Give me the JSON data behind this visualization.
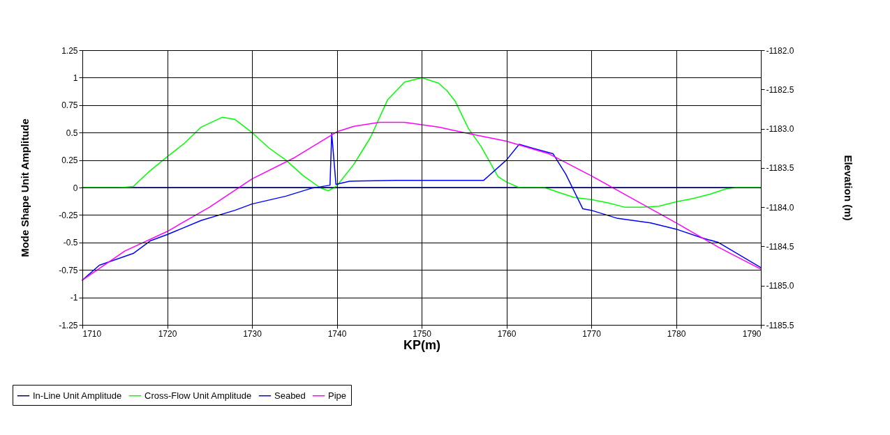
{
  "chart_data": {
    "type": "line",
    "xlabel": "KP(m)",
    "ylabel": "Mode Shape Unit Amplitude",
    "y2label": "Elevation (m)",
    "xlim": [
      1710,
      1790
    ],
    "xticks": [
      1710,
      1720,
      1730,
      1740,
      1750,
      1760,
      1770,
      1780,
      1790
    ],
    "ylim": [
      -1.25,
      1.25
    ],
    "yticks": [
      -1.25,
      -1,
      -0.75,
      -0.5,
      -0.25,
      0,
      0.25,
      0.5,
      0.75,
      1,
      1.25
    ],
    "y2lim": [
      -1185.5,
      -1182
    ],
    "y2ticks": [
      {
        "value": -1185.5,
        "label": "-1185.5"
      },
      {
        "value": -1185,
        "label": "-1185.0"
      },
      {
        "value": -1184.5,
        "label": "-1184.5"
      },
      {
        "value": -1184,
        "label": "-1184.0"
      },
      {
        "value": -1183.5,
        "label": "-1183.5"
      },
      {
        "value": -1183,
        "label": "-1183.0"
      },
      {
        "value": -1182.5,
        "label": "-1182.5"
      },
      {
        "value": -1182,
        "label": "-1182.0"
      }
    ],
    "grid": true,
    "legend": "bottom",
    "series": [
      {
        "name": "In-Line Unit Amplitude",
        "color": "#000080",
        "x": [
          1710,
          1790
        ],
        "values": [
          0,
          0
        ]
      },
      {
        "name": "Cross-Flow Unit Amplitude",
        "color": "#00ff00",
        "x": [
          1710,
          1714.5,
          1716,
          1717.8,
          1720,
          1722,
          1724,
          1726.5,
          1728,
          1730,
          1732,
          1734,
          1736,
          1738,
          1739,
          1740,
          1742,
          1744,
          1746,
          1748,
          1750,
          1752,
          1753,
          1754,
          1755.5,
          1757,
          1759,
          1760,
          1761.5,
          1764.5,
          1766,
          1768,
          1770,
          1772,
          1774,
          1776,
          1778,
          1780,
          1782,
          1784,
          1786,
          1787,
          1790
        ],
        "values": [
          0,
          0,
          0.01,
          0.14,
          0.28,
          0.4,
          0.55,
          0.64,
          0.62,
          0.5,
          0.36,
          0.25,
          0.11,
          0,
          -0.03,
          0.015,
          0.21,
          0.46,
          0.8,
          0.96,
          1,
          0.95,
          0.88,
          0.78,
          0.54,
          0.375,
          0.1,
          0.05,
          0,
          0,
          -0.04,
          -0.09,
          -0.11,
          -0.14,
          -0.18,
          -0.18,
          -0.17,
          -0.13,
          -0.1,
          -0.06,
          -0.01,
          0,
          0
        ]
      },
      {
        "name": "Seabed",
        "color": "#0000ff",
        "axis": "y2",
        "x": [
          1710,
          1712,
          1716,
          1718,
          1720,
          1724,
          1728,
          1730,
          1734,
          1737,
          1739.2,
          1739.4,
          1739.9,
          1741.5,
          1747,
          1750,
          1757.3,
          1760,
          1761.5,
          1765.5,
          1767,
          1769,
          1770,
          1773,
          1777,
          1780,
          1783,
          1785,
          1790
        ],
        "values": [
          -1184.93,
          -1184.74,
          -1184.59,
          -1184.43,
          -1184.35,
          -1184.17,
          -1184.04,
          -1183.96,
          -1183.86,
          -1183.76,
          -1183.72,
          -1183.06,
          -1183.71,
          -1183.67,
          -1183.66,
          -1183.66,
          -1183.66,
          -1183.4,
          -1183.2,
          -1183.32,
          -1183.58,
          -1184.02,
          -1184.04,
          -1184.14,
          -1184.2,
          -1184.28,
          -1184.39,
          -1184.45,
          -1184.77
        ]
      },
      {
        "name": "Pipe",
        "color": "#ff00ff",
        "axis": "y2",
        "x": [
          1710,
          1715,
          1720,
          1725,
          1730,
          1735,
          1740,
          1742,
          1745,
          1748,
          1752,
          1755,
          1760,
          1765,
          1770,
          1775,
          1780,
          1785,
          1790
        ],
        "values": [
          -1184.93,
          -1184.56,
          -1184.31,
          -1184,
          -1183.64,
          -1183.37,
          -1183.04,
          -1182.97,
          -1182.92,
          -1182.92,
          -1182.98,
          -1183.05,
          -1183.16,
          -1183.32,
          -1183.6,
          -1183.9,
          -1184.2,
          -1184.51,
          -1184.79
        ]
      }
    ]
  }
}
